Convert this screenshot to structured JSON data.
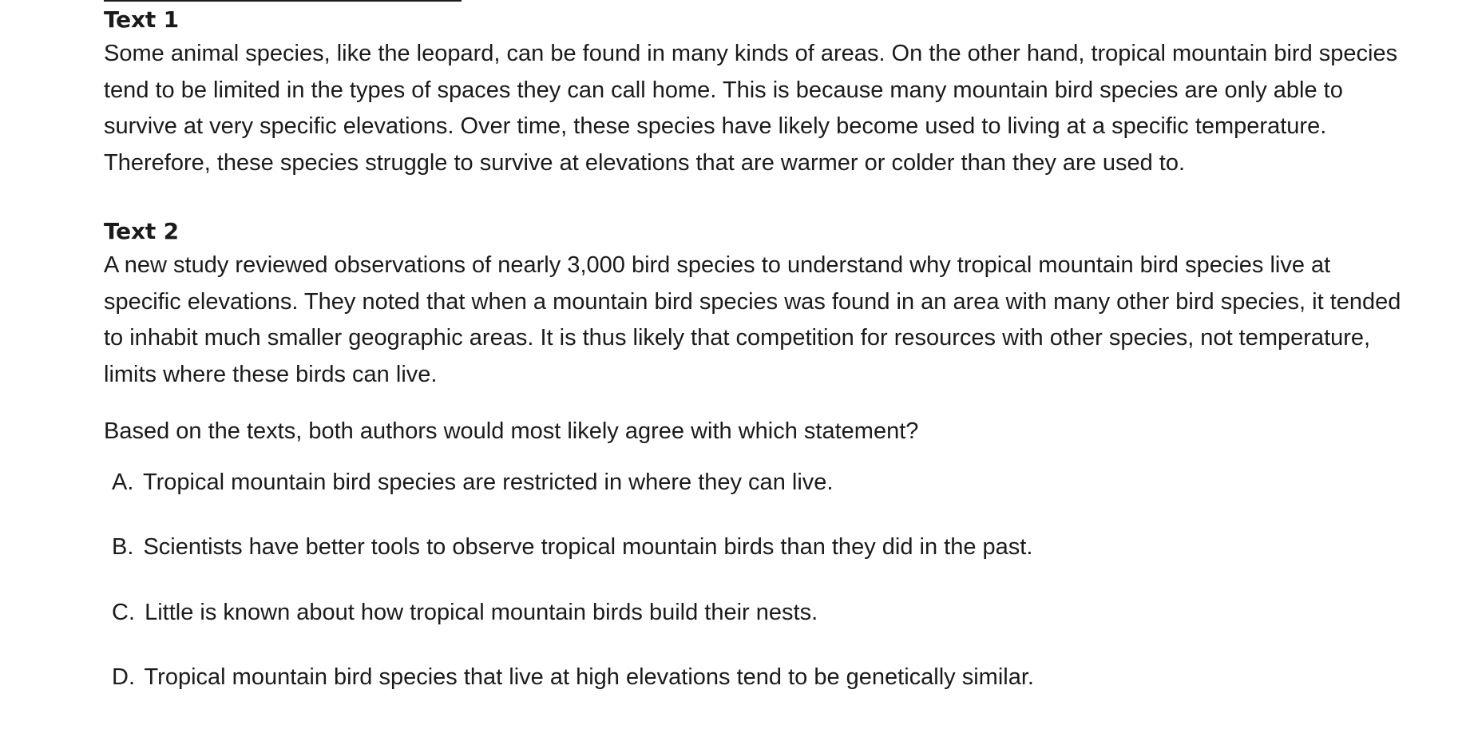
{
  "text1": {
    "heading": "Text 1",
    "body": "Some animal species, like the leopard, can be found in many kinds of areas. On the other hand, tropical mountain bird species tend to be limited in the types of spaces they can call home. This is because many mountain bird species are only able to survive at very specific elevations. Over time, these species have likely become used to living at a specific temperature. Therefore, these species struggle to survive at elevations that are warmer or colder than they are used to."
  },
  "text2": {
    "heading": "Text 2",
    "body": "A new study reviewed observations of nearly 3,000 bird species to understand why tropical mountain bird species live at specific elevations. They noted that when a mountain bird species was found in an area with many other bird species, it tended to inhabit much smaller geographic areas. It is thus likely that competition for resources with other species, not temperature, limits where these birds can live."
  },
  "question": "Based on the texts, both authors would most likely agree with which statement?",
  "choices": [
    {
      "letter": "A.",
      "text": "Tropical mountain bird species are restricted in where they can live."
    },
    {
      "letter": "B.",
      "text": "Scientists have better tools to observe tropical mountain birds than they did in the past."
    },
    {
      "letter": "C.",
      "text": "Little is known about how tropical mountain birds build their nests."
    },
    {
      "letter": "D.",
      "text": "Tropical mountain bird species that live at high elevations tend to be genetically similar."
    }
  ]
}
